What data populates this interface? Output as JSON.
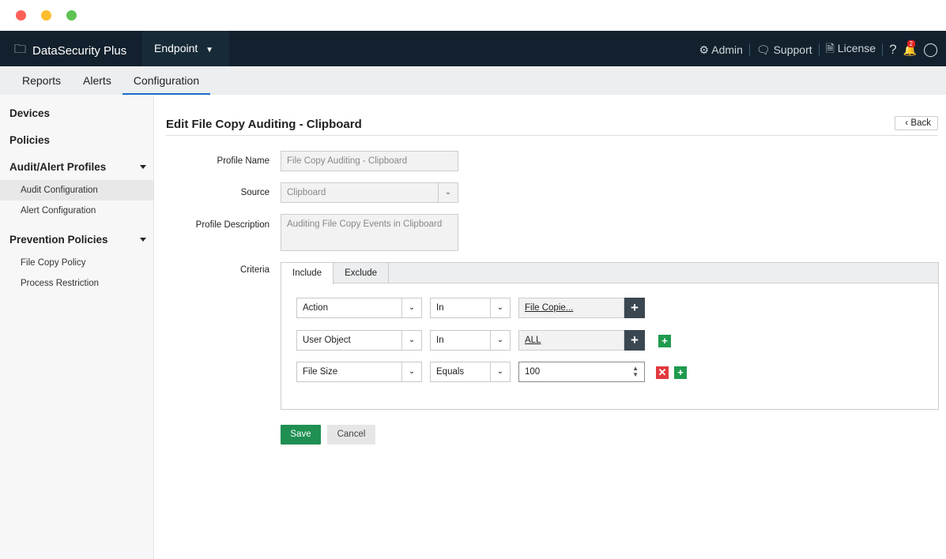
{
  "app": {
    "brand": "DataSecurity Plus",
    "product": "Endpoint"
  },
  "topright": {
    "admin": "Admin",
    "support": "Support",
    "license": "License",
    "help": "?",
    "notifications": "2"
  },
  "nav": [
    "Reports",
    "Alerts",
    "Configuration"
  ],
  "sidebar": {
    "devices": "Devices",
    "policies": "Policies",
    "audit_profiles": "Audit/Alert Profiles",
    "audit_config": "Audit Configuration",
    "alert_config": "Alert Configuration",
    "prevention": "Prevention Policies",
    "file_copy": "File Copy Policy",
    "process": "Process Restriction"
  },
  "page": {
    "title": "Edit File Copy Auditing - Clipboard",
    "back": "Back"
  },
  "form": {
    "profile_name_label": "Profile Name",
    "profile_name": "File Copy Auditing - Clipboard",
    "source_label": "Source",
    "source": "Clipboard",
    "desc_label": "Profile Description",
    "desc": "Auditing File Copy Events in Clipboard",
    "criteria_label": "Criteria"
  },
  "tabs": [
    "Include",
    "Exclude"
  ],
  "criteria": [
    {
      "field": "Action",
      "op": "In",
      "value": "File Copie..."
    },
    {
      "field": "User Object",
      "op": "In",
      "value": "ALL"
    },
    {
      "field": "File Size",
      "op": "Equals",
      "value": "100"
    }
  ],
  "buttons": {
    "save": "Save",
    "cancel": "Cancel"
  }
}
